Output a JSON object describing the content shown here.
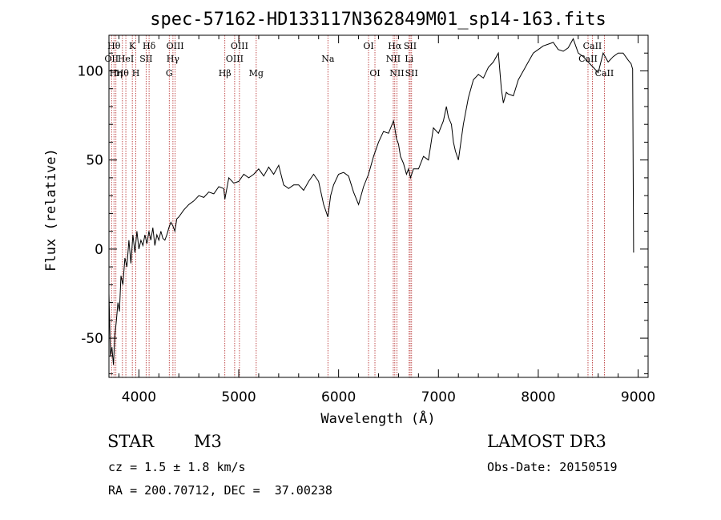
{
  "chart_data": {
    "type": "line",
    "title": "spec-57162-HD133117N362849M01_sp14-163.fits",
    "xlabel": "Wavelength (Å)",
    "ylabel": "Flux (relative)",
    "xlim": [
      3700,
      9100
    ],
    "ylim": [
      -72,
      120
    ],
    "xticks": [
      4000,
      5000,
      6000,
      7000,
      8000,
      9000
    ],
    "yticks": [
      -50,
      0,
      50,
      100
    ],
    "series": [
      {
        "name": "flux",
        "x": [
          3700,
          3715,
          3730,
          3745,
          3760,
          3775,
          3790,
          3805,
          3820,
          3840,
          3860,
          3880,
          3900,
          3920,
          3940,
          3960,
          3980,
          4000,
          4020,
          4040,
          4060,
          4080,
          4100,
          4120,
          4140,
          4160,
          4180,
          4200,
          4220,
          4240,
          4260,
          4280,
          4300,
          4320,
          4340,
          4360,
          4380,
          4400,
          4450,
          4500,
          4550,
          4600,
          4650,
          4700,
          4750,
          4800,
          4850,
          4861,
          4900,
          4950,
          5000,
          5050,
          5100,
          5150,
          5200,
          5250,
          5300,
          5350,
          5400,
          5450,
          5500,
          5550,
          5600,
          5650,
          5700,
          5750,
          5800,
          5850,
          5893,
          5920,
          5950,
          6000,
          6050,
          6100,
          6150,
          6200,
          6250,
          6300,
          6350,
          6400,
          6450,
          6500,
          6550,
          6563,
          6580,
          6600,
          6620,
          6650,
          6680,
          6700,
          6720,
          6750,
          6800,
          6850,
          6900,
          6950,
          7000,
          7050,
          7080,
          7100,
          7130,
          7150,
          7170,
          7200,
          7250,
          7300,
          7350,
          7400,
          7450,
          7500,
          7550,
          7600,
          7630,
          7650,
          7680,
          7700,
          7750,
          7800,
          7850,
          7900,
          7950,
          8000,
          8050,
          8100,
          8150,
          8200,
          8250,
          8300,
          8350,
          8400,
          8450,
          8500,
          8550,
          8600,
          8650,
          8700,
          8750,
          8800,
          8850,
          8900,
          8930,
          8945,
          8955
        ],
        "y": [
          -25,
          -60,
          -55,
          -65,
          -48,
          -40,
          -30,
          -35,
          -15,
          -20,
          -5,
          -10,
          5,
          -8,
          8,
          -2,
          10,
          0,
          5,
          2,
          8,
          3,
          10,
          5,
          12,
          2,
          8,
          5,
          10,
          6,
          5,
          8,
          12,
          15,
          13,
          10,
          17,
          18,
          22,
          25,
          27,
          30,
          29,
          32,
          31,
          35,
          34,
          28,
          40,
          37,
          38,
          42,
          40,
          42,
          45,
          41,
          46,
          42,
          47,
          36,
          34,
          36,
          36,
          33,
          38,
          42,
          38,
          25,
          18,
          30,
          36,
          42,
          43,
          41,
          32,
          25,
          35,
          42,
          52,
          60,
          66,
          65,
          72,
          68,
          62,
          59,
          52,
          48,
          42,
          45,
          40,
          45,
          45,
          52,
          50,
          68,
          65,
          72,
          80,
          74,
          70,
          60,
          55,
          50,
          70,
          85,
          95,
          98,
          96,
          102,
          105,
          110,
          90,
          82,
          88,
          87,
          86,
          95,
          100,
          105,
          110,
          112,
          114,
          115,
          116,
          112,
          111,
          113,
          118,
          110,
          108,
          105,
          102,
          99,
          110,
          105,
          108,
          110,
          110,
          106,
          104,
          101,
          -2
        ]
      }
    ],
    "line_labels": [
      {
        "x": 3726,
        "text": "OII",
        "row": 2
      },
      {
        "x": 3750,
        "text": "Hθ",
        "row": 1
      },
      {
        "x": 3770,
        "text": "Hη",
        "row": 3
      },
      {
        "x": 3835,
        "text": "Hθ",
        "row": 3
      },
      {
        "x": 3869,
        "text": "HeI",
        "row": 2
      },
      {
        "x": 3934,
        "text": "K",
        "row": 1
      },
      {
        "x": 3969,
        "text": "H",
        "row": 3
      },
      {
        "x": 4072,
        "text": "SII",
        "row": 2
      },
      {
        "x": 4102,
        "text": "Hδ",
        "row": 1
      },
      {
        "x": 4304,
        "text": "G",
        "row": 3
      },
      {
        "x": 4341,
        "text": "Hγ",
        "row": 2
      },
      {
        "x": 4363,
        "text": "OIII",
        "row": 1
      },
      {
        "x": 4861,
        "text": "Hβ",
        "row": 3
      },
      {
        "x": 4959,
        "text": "OIII",
        "row": 2
      },
      {
        "x": 5007,
        "text": "OIII",
        "row": 1
      },
      {
        "x": 5175,
        "text": "Mg",
        "row": 3
      },
      {
        "x": 5893,
        "text": "Na",
        "row": 2
      },
      {
        "x": 6300,
        "text": "OI",
        "row": 1
      },
      {
        "x": 6364,
        "text": "OI",
        "row": 3
      },
      {
        "x": 6548,
        "text": "NII",
        "row": 2
      },
      {
        "x": 6563,
        "text": "Hα",
        "row": 1
      },
      {
        "x": 6584,
        "text": "NII",
        "row": 3
      },
      {
        "x": 6707,
        "text": "Li",
        "row": 2
      },
      {
        "x": 6717,
        "text": "SII",
        "row": 1
      },
      {
        "x": 6731,
        "text": "SII",
        "row": 3
      },
      {
        "x": 8498,
        "text": "CaII",
        "row": 2
      },
      {
        "x": 8542,
        "text": "CaII",
        "row": 1
      },
      {
        "x": 8662,
        "text": "CaII",
        "row": 3
      }
    ]
  },
  "info": {
    "object_class": "STAR",
    "subclass": "M3",
    "survey": "LAMOST DR3",
    "cz": "cz = 1.5 ± 1.8 km/s",
    "obs_date": "Obs-Date: 20150519",
    "coords": "RA = 200.70712, DEC =  37.00238"
  },
  "colors": {
    "line_marker": "#b22222",
    "spectrum": "#000000"
  }
}
